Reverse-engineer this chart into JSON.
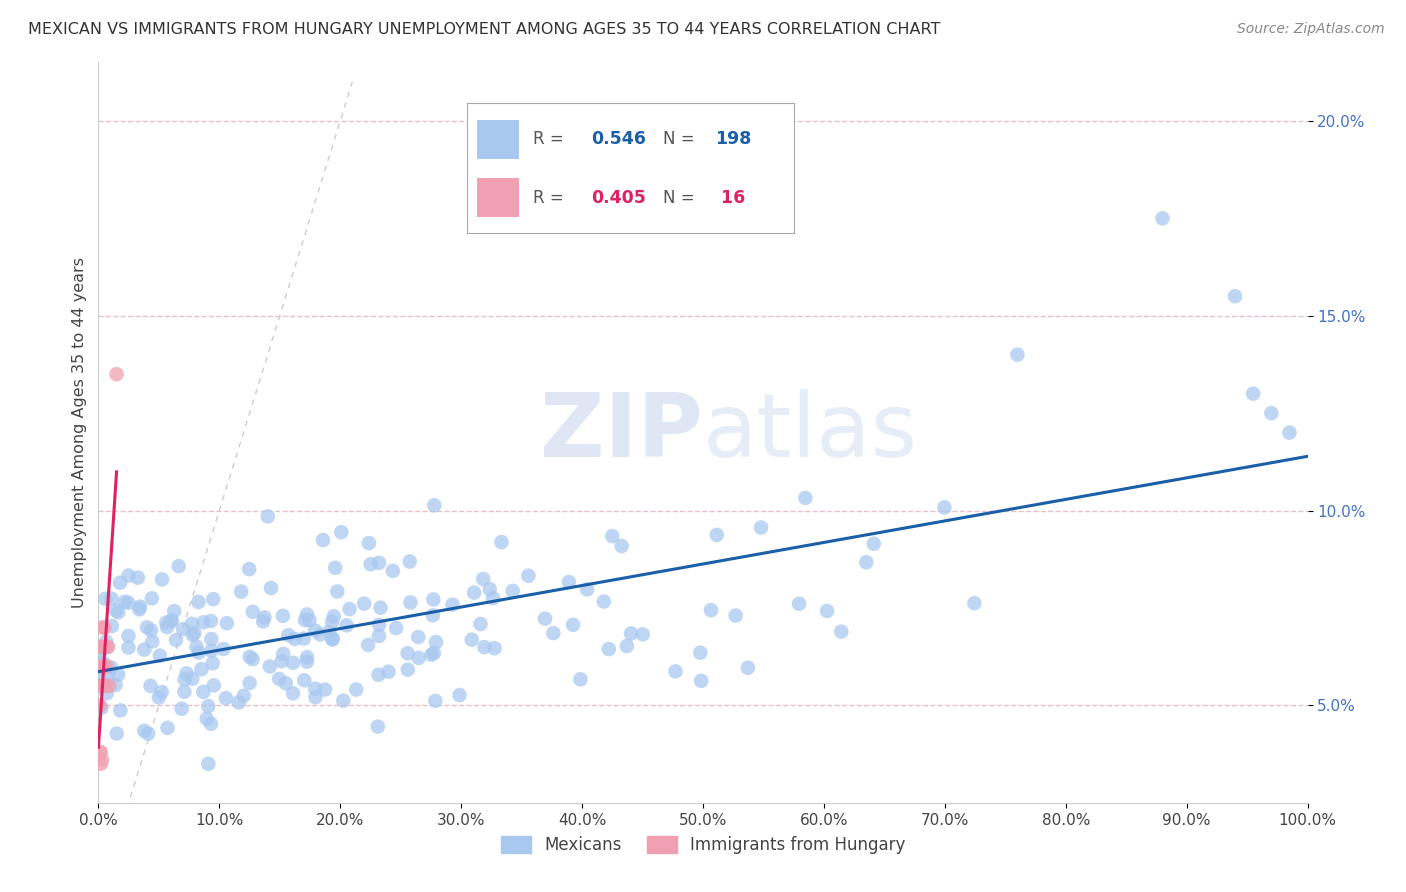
{
  "title": "MEXICAN VS IMMIGRANTS FROM HUNGARY UNEMPLOYMENT AMONG AGES 35 TO 44 YEARS CORRELATION CHART",
  "source": "Source: ZipAtlas.com",
  "ylabel": "Unemployment Among Ages 35 to 44 years",
  "xlim": [
    0,
    1.0
  ],
  "ylim": [
    0.025,
    0.215
  ],
  "r_mexican": 0.546,
  "n_mexican": 198,
  "r_hungary": 0.405,
  "n_hungary": 16,
  "legend_label_mexican": "Mexicans",
  "legend_label_hungary": "Immigrants from Hungary",
  "scatter_color_mexican": "#a8c8f0",
  "scatter_color_hungary": "#f0a0b0",
  "line_color_mexican": "#1a5fa8",
  "line_color_hungary": "#e02060",
  "watermark_zip": "ZIP",
  "watermark_atlas": "atlas",
  "background_color": "#ffffff",
  "grid_color": "#e8c0c8",
  "diagonal_color": "#cccccc"
}
